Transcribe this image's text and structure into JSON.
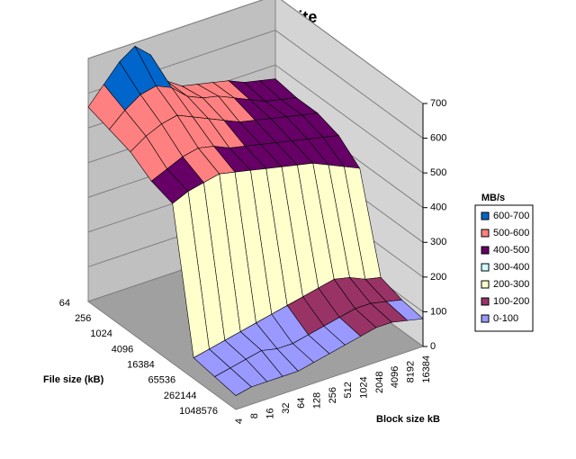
{
  "chart_data": {
    "type": "surface",
    "title": "Write",
    "x_label": "Block size kB",
    "depth_label": "File size (kB)",
    "legend_title": "MB/s",
    "categories": [
      "4",
      "8",
      "16",
      "32",
      "64",
      "128",
      "256",
      "512",
      "1024",
      "2048",
      "4096",
      "8192",
      "16384"
    ],
    "depth_categories": [
      "64",
      "256",
      "1024",
      "4096",
      "16384",
      "65536",
      "262144",
      "1048576"
    ],
    "values": [
      [
        560,
        610,
        660,
        690,
        650,
        560,
        530,
        520,
        510,
        500,
        480,
        470,
        460
      ],
      [
        540,
        580,
        610,
        620,
        600,
        560,
        540,
        530,
        510,
        490,
        470,
        460,
        450
      ],
      [
        520,
        550,
        570,
        580,
        560,
        540,
        520,
        500,
        490,
        480,
        470,
        460,
        450
      ],
      [
        480,
        500,
        520,
        530,
        520,
        500,
        490,
        480,
        470,
        460,
        450,
        440,
        430
      ],
      [
        460,
        480,
        490,
        500,
        490,
        480,
        470,
        460,
        450,
        440,
        420,
        400,
        380
      ],
      [
        60,
        70,
        80,
        90,
        100,
        110,
        120,
        130,
        140,
        150,
        140,
        120,
        110
      ],
      [
        50,
        60,
        70,
        80,
        70,
        70,
        80,
        90,
        100,
        110,
        110,
        100,
        90
      ],
      [
        40,
        50,
        50,
        50,
        50,
        60,
        70,
        80,
        90,
        100,
        100,
        90,
        80
      ]
    ],
    "zlim": [
      0,
      700
    ],
    "zticks": [
      0,
      100,
      200,
      300,
      400,
      500,
      600,
      700
    ],
    "bands": [
      {
        "name": "600-700",
        "color": "#0066cc"
      },
      {
        "name": "500-600",
        "color": "#ff8080"
      },
      {
        "name": "400-500",
        "color": "#660066"
      },
      {
        "name": "300-400",
        "color": "#ccffff"
      },
      {
        "name": "200-300",
        "color": "#ffffcc"
      },
      {
        "name": "100-200",
        "color": "#993366"
      },
      {
        "name": "0-100",
        "color": "#9999ff"
      }
    ]
  }
}
